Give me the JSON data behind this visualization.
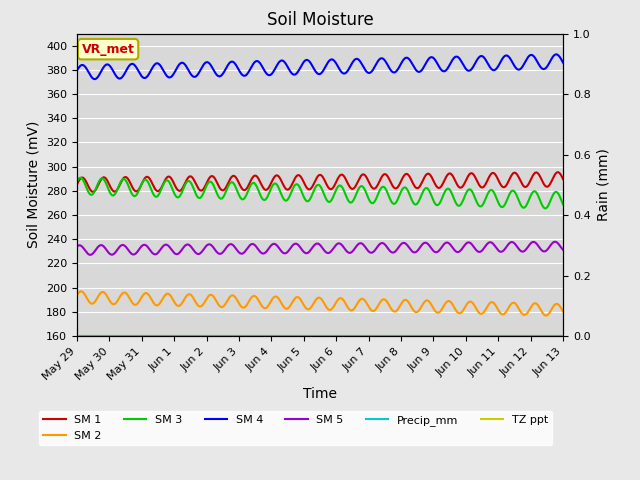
{
  "title": "Soil Moisture",
  "xlabel": "Time",
  "ylabel_left": "Soil Moisture (mV)",
  "ylabel_right": "Rain (mm)",
  "background_color": "#e8e8e8",
  "plot_bg_color": "#d8d8d8",
  "ylim_left": [
    160,
    410
  ],
  "ylim_right": [
    0.0,
    1.0
  ],
  "yticks_left": [
    160,
    180,
    200,
    220,
    240,
    260,
    280,
    300,
    320,
    340,
    360,
    380,
    400
  ],
  "yticks_right": [
    0.0,
    0.2,
    0.4,
    0.6,
    0.8,
    1.0
  ],
  "n_days": 16,
  "start_day": 29,
  "series": {
    "SM1": {
      "color": "#cc0000",
      "base": 285,
      "amp": 6,
      "trend": 0.3,
      "freq": 1.5,
      "phase": 0.0
    },
    "SM2": {
      "color": "#ff9900",
      "base": 192,
      "amp": 5,
      "trend": -0.7,
      "freq": 1.5,
      "phase": 0.3
    },
    "SM3": {
      "color": "#00cc00",
      "base": 284,
      "amp": 7,
      "trend": -0.8,
      "freq": 1.5,
      "phase": 0.5
    },
    "SM4": {
      "color": "#0000ff",
      "base": 378,
      "amp": 6,
      "trend": 0.6,
      "freq": 1.3,
      "phase": 0.2
    },
    "SM5": {
      "color": "#9900cc",
      "base": 231,
      "amp": 4,
      "trend": 0.2,
      "freq": 1.5,
      "phase": 0.8
    },
    "Precip_mm": {
      "color": "#00cccc",
      "base": 0.0,
      "amp": 0.0,
      "trend": 0.0,
      "freq": 0.0,
      "phase": 0.0
    },
    "TZ_ppt": {
      "color": "#cccc00",
      "base": 160,
      "amp": 0.0,
      "trend": 0.0,
      "freq": 0.0,
      "phase": 0.0
    }
  },
  "n_points": 400,
  "annotation_text": "VR_met",
  "annotation_color": "#cc0000",
  "annotation_bg": "#ffffcc",
  "annotation_border": "#aaaa00",
  "xtick_labels": [
    "May 29",
    "May 30",
    "May 31",
    "Jun 1",
    "Jun 2",
    "Jun 3",
    "Jun 4",
    "Jun 5",
    "Jun 6",
    "Jun 7",
    "Jun 8",
    "Jun 9",
    "Jun 10",
    "Jun 11",
    "Jun 12",
    "Jun 13"
  ],
  "legend_entries": [
    {
      "label": "SM 1",
      "color": "#cc0000"
    },
    {
      "label": "SM 2",
      "color": "#ff9900"
    },
    {
      "label": "SM 3",
      "color": "#00cc00"
    },
    {
      "label": "SM 4",
      "color": "#0000ff"
    },
    {
      "label": "SM 5",
      "color": "#9900cc"
    },
    {
      "label": "Precip_mm",
      "color": "#00cccc"
    },
    {
      "label": "TZ ppt",
      "color": "#cccc00"
    }
  ]
}
